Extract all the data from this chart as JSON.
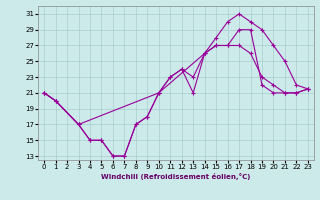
{
  "xlabel": "Windchill (Refroidissement éolien,°C)",
  "background_color": "#cceaea",
  "grid_color": "#aacccc",
  "line_color": "#990099",
  "xlim": [
    -0.5,
    23.5
  ],
  "ylim": [
    12.5,
    32
  ],
  "yticks": [
    13,
    15,
    17,
    19,
    21,
    23,
    25,
    27,
    29,
    31
  ],
  "xticks": [
    0,
    1,
    2,
    3,
    4,
    5,
    6,
    7,
    8,
    9,
    10,
    11,
    12,
    13,
    14,
    15,
    16,
    17,
    18,
    19,
    20,
    21,
    22,
    23
  ],
  "line1_x": [
    0,
    1,
    3,
    4,
    5,
    6,
    7,
    8,
    9,
    10,
    11,
    12,
    13,
    14,
    15,
    16,
    17,
    18,
    19,
    20,
    21,
    22,
    23
  ],
  "line1_y": [
    21,
    20,
    17,
    15,
    15,
    13,
    13,
    17,
    18,
    21,
    23,
    24,
    21,
    26,
    28,
    30,
    31,
    30,
    29,
    27,
    25,
    22,
    21.5
  ],
  "line2_x": [
    0,
    1,
    3,
    4,
    5,
    6,
    7,
    8,
    9,
    10,
    11,
    12,
    13,
    14,
    15,
    16,
    17,
    18,
    19,
    20,
    21,
    22,
    23
  ],
  "line2_y": [
    21,
    20,
    17,
    15,
    15,
    13,
    13,
    17,
    18,
    21,
    23,
    24,
    23,
    26,
    27,
    27,
    29,
    29,
    22,
    21,
    21,
    21,
    21.5
  ],
  "line3_x": [
    0,
    1,
    3,
    10,
    14,
    15,
    16,
    17,
    18,
    19,
    20,
    21,
    22,
    23
  ],
  "line3_y": [
    21,
    20,
    17,
    21,
    26,
    27,
    27,
    27,
    26,
    23,
    22,
    21,
    21,
    21.5
  ]
}
